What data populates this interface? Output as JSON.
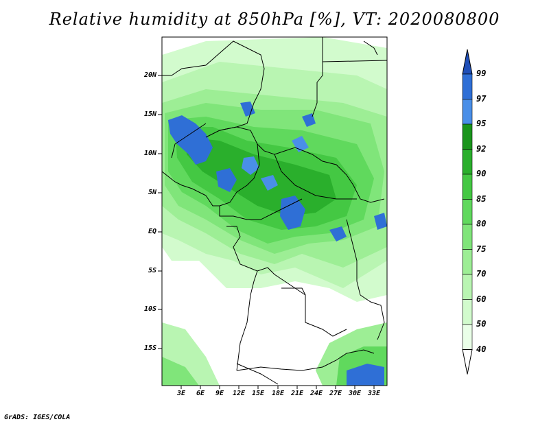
{
  "title": "Relative humidity at 850hPa [%], VT: 2020080800",
  "credit": "GrADS: IGES/COLA",
  "map": {
    "lat_ticks": [
      "20N",
      "15N",
      "10N",
      "5N",
      "EQ",
      "5S",
      "10S",
      "15S"
    ],
    "lon_ticks": [
      "3E",
      "6E",
      "9E",
      "12E",
      "15E",
      "18E",
      "21E",
      "24E",
      "27E",
      "30E",
      "33E"
    ]
  },
  "colorbar": {
    "levels": [
      "40",
      "50",
      "60",
      "70",
      "75",
      "80",
      "85",
      "90",
      "92",
      "95",
      "97",
      "99"
    ],
    "colors": [
      "#ffffff",
      "#eaffe8",
      "#d2fbcd",
      "#b9f5b2",
      "#9dee95",
      "#80e57a",
      "#60d95d",
      "#44c843",
      "#2aaf2c",
      "#1a951c",
      "#4a8fe8",
      "#2f6fd6",
      "#1f4fb8"
    ]
  }
}
